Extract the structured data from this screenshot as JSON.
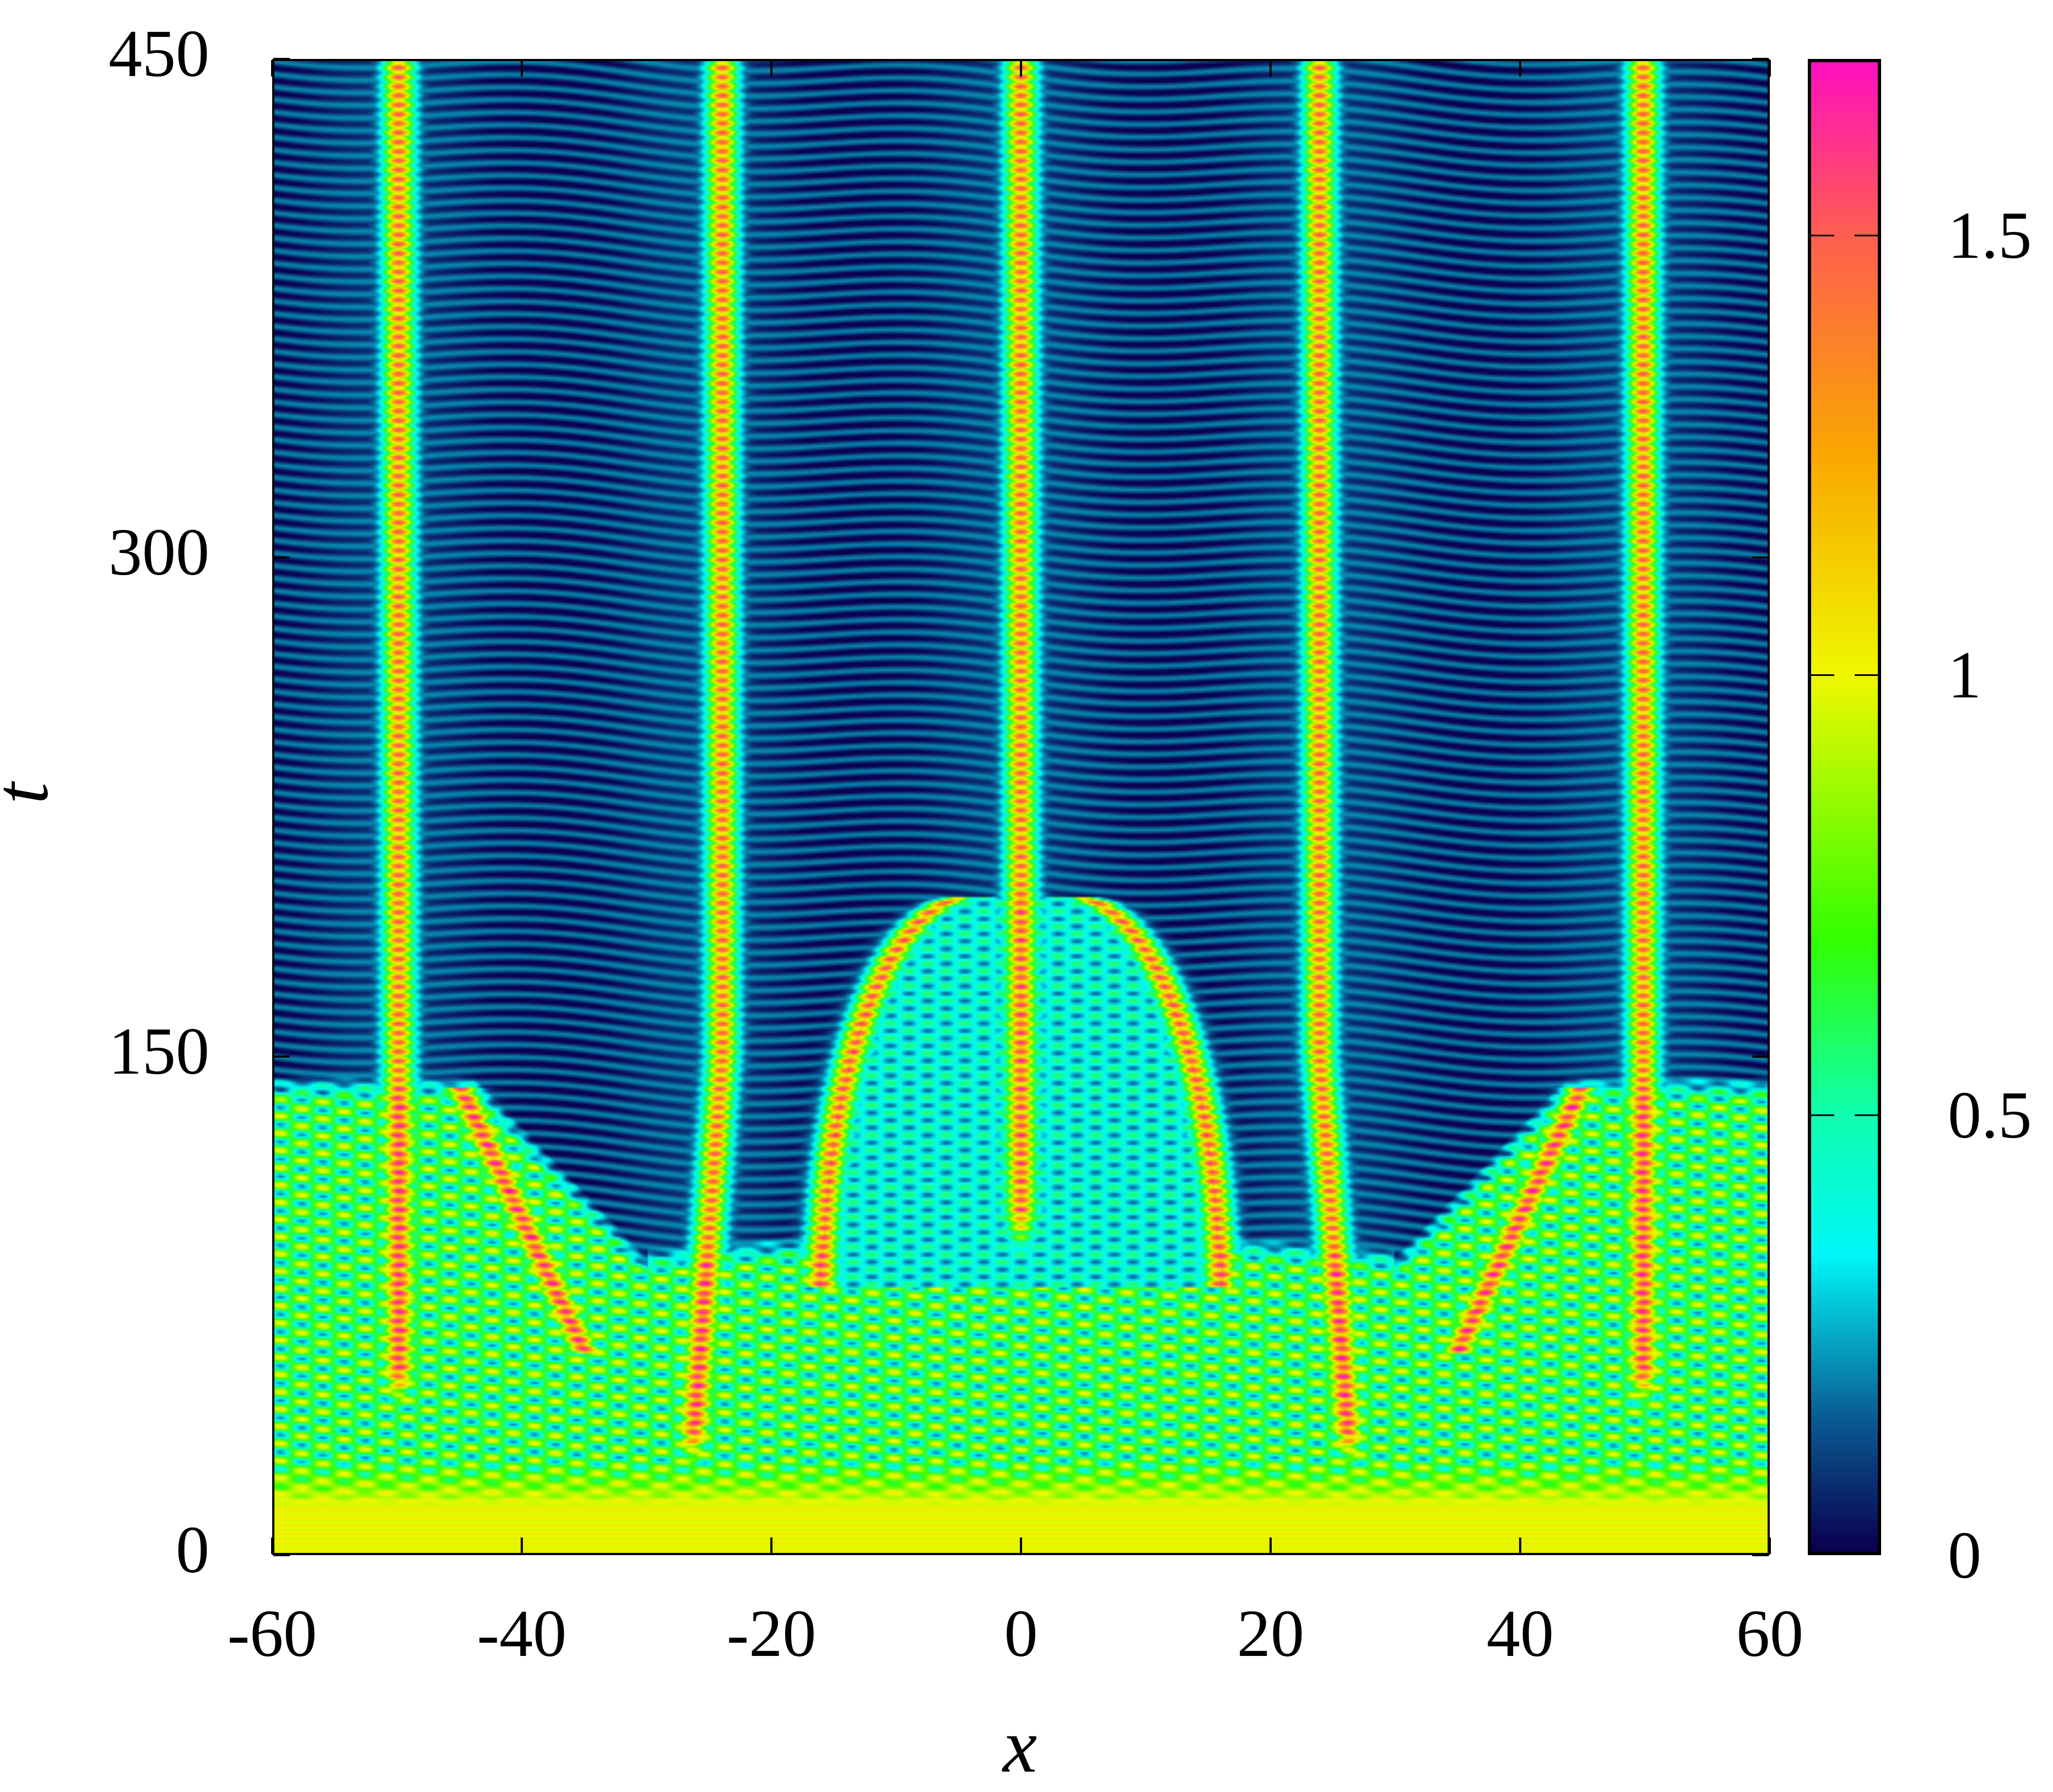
{
  "chart_data": {
    "type": "heatmap",
    "title": "",
    "xlabel": "x",
    "ylabel": "t",
    "xlim": [
      -60,
      60
    ],
    "ylim": [
      0,
      450
    ],
    "xticks": [
      -60,
      -40,
      -20,
      0,
      20,
      40,
      60
    ],
    "xtick_labels": [
      "-60",
      "-40",
      "-20",
      "0",
      "20",
      "40",
      "60"
    ],
    "yticks": [
      0,
      150,
      300,
      450
    ],
    "ytick_labels": [
      "0",
      "150",
      "300",
      "450"
    ],
    "grid": false,
    "colorbar": {
      "range": [
        0,
        1.7
      ],
      "ticks": [
        0,
        0.5,
        1,
        1.5
      ],
      "tick_labels": [
        "0",
        "0.5",
        "1",
        "1.5"
      ],
      "placement": "right",
      "colormap": [
        {
          "value": 0.0,
          "color": "#0a0050"
        },
        {
          "value": 0.15,
          "color": "#0a5a92"
        },
        {
          "value": 0.34,
          "color": "#00f8f8"
        },
        {
          "value": 0.5,
          "color": "#10ffb0"
        },
        {
          "value": 0.7,
          "color": "#33ff00"
        },
        {
          "value": 1.0,
          "color": "#f0f800"
        },
        {
          "value": 1.25,
          "color": "#faa800"
        },
        {
          "value": 1.5,
          "color": "#ff6050"
        },
        {
          "value": 1.7,
          "color": "#ff10c0"
        }
      ]
    },
    "features": {
      "soliton_positions_x": [
        -50,
        -24,
        0,
        24,
        50
      ],
      "initial_uniform_level": 1.0
    }
  }
}
